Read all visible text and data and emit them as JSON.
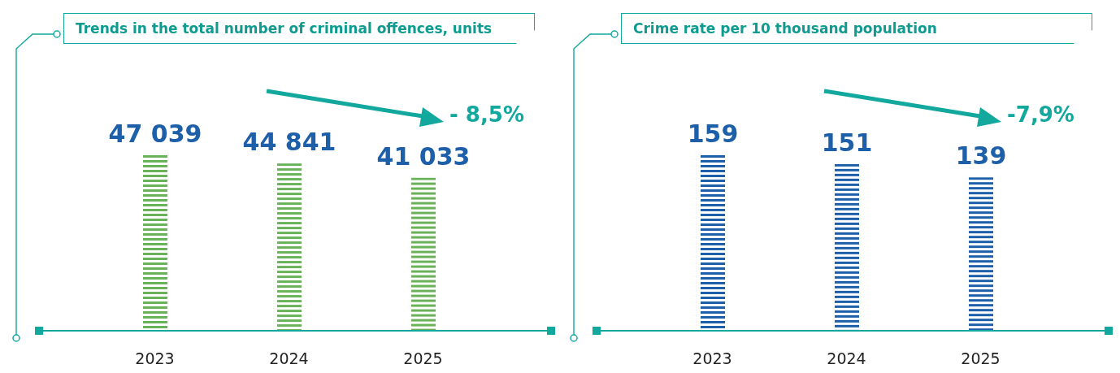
{
  "chart_data": [
    {
      "type": "bar",
      "title": "Trends in the total number of criminal offences, units",
      "categories": [
        "2023",
        "2024",
        "2025"
      ],
      "values": [
        47039,
        44841,
        41033
      ],
      "value_labels": [
        "47 039",
        "44 841",
        "41 033"
      ],
      "color": "#6ab25a",
      "annotations": [
        "- 8,5%"
      ]
    },
    {
      "type": "bar",
      "title": "Crime rate per 10 thousand population",
      "categories": [
        "2023",
        "2024",
        "2025"
      ],
      "values": [
        159,
        151,
        139
      ],
      "value_labels": [
        "159",
        "151",
        "139"
      ],
      "color": "#1d5fa8",
      "annotations": [
        "-7,9%"
      ]
    }
  ]
}
